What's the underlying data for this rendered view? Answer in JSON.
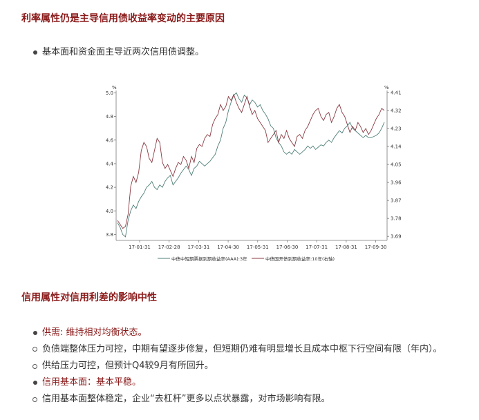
{
  "section1": {
    "heading": "利率属性仍是主导信用债收益率变动的主要原因",
    "bullet": "基本面和资金面主导近两次信用债调整。"
  },
  "section2": {
    "heading": "信用属性对信用利差的影响中性",
    "items": [
      {
        "style": "dot",
        "text": "供需: 维持相对均衡状态。",
        "color": "#8b1a1a"
      },
      {
        "style": "ring",
        "text": "负债端整体压力可控，中期有望逐步修复，但短期仍难有明显增长且成本中枢下行空间有限（年内）。"
      },
      {
        "style": "ring",
        "text": "供给压力可控，但预计Q4较9月有所回升。"
      },
      {
        "style": "dot",
        "text": "信用基本面：基本平稳。",
        "color": "#8b1a1a"
      },
      {
        "style": "ring",
        "text": "信用基本面整体稳定，企业“去杠杆”更多以点状暴露，对市场影响有限。"
      }
    ]
  },
  "chart_data": {
    "type": "line",
    "x_ticks": [
      "17-01-31",
      "17-02-28",
      "17-03-31",
      "17-04-30",
      "17-05-31",
      "17-06-30",
      "17-07-31",
      "17-08-31",
      "17-09-30"
    ],
    "y_left_ticks": [
      "5.0",
      "4.8",
      "4.6",
      "4.4",
      "4.2",
      "4.0",
      "3.8"
    ],
    "y_right_ticks": [
      "4.41",
      "4.32",
      "4.23",
      "4.14",
      "4.05",
      "3.96",
      "3.87",
      "3.78",
      "3.69"
    ],
    "ylim_left": [
      3.75,
      5.02
    ],
    "ylim_right": [
      3.67,
      4.42
    ],
    "left_axis_symbol": "%",
    "right_axis_symbol": "%",
    "series": [
      {
        "name": "中债中短期票据到期收益率(AAA):3年",
        "axis": "left",
        "color": "#4f7f78",
        "values": [
          3.9,
          3.86,
          3.8,
          3.78,
          3.92,
          4.0,
          4.05,
          4.02,
          4.08,
          4.12,
          4.15,
          4.2,
          4.22,
          4.25,
          4.2,
          4.18,
          4.22,
          4.2,
          4.25,
          4.28,
          4.3,
          4.22,
          4.25,
          4.28,
          4.32,
          4.35,
          4.38,
          4.35,
          4.3,
          4.36,
          4.38,
          4.42,
          4.4,
          4.38,
          4.4,
          4.42,
          4.45,
          4.48,
          4.55,
          4.6,
          4.7,
          4.75,
          4.85,
          4.92,
          4.98,
          5.0,
          4.95,
          4.92,
          4.98,
          4.96,
          4.9,
          4.94,
          4.92,
          4.88,
          4.9,
          4.85,
          4.82,
          4.78,
          4.72,
          4.7,
          4.62,
          4.58,
          4.55,
          4.5,
          4.48,
          4.5,
          4.48,
          4.52,
          4.5,
          4.48,
          4.5,
          4.52,
          4.55,
          4.53,
          4.55,
          4.52,
          4.54,
          4.56,
          4.55,
          4.58,
          4.6,
          4.58,
          4.62,
          4.65,
          4.68,
          4.66,
          4.7,
          4.72,
          4.75,
          4.7,
          4.68,
          4.66,
          4.64,
          4.62,
          4.64,
          4.62,
          4.62,
          4.63,
          4.64,
          4.66,
          4.7,
          4.75
        ]
      },
      {
        "name": "中债国开债到期收益率:10年(右轴)",
        "axis": "right",
        "color": "#8a3a42",
        "values": [
          3.77,
          3.75,
          3.73,
          3.74,
          3.8,
          3.94,
          3.99,
          3.96,
          4.01,
          4.12,
          4.16,
          4.14,
          4.08,
          4.06,
          4.12,
          4.18,
          4.16,
          4.06,
          4.03,
          4.05,
          4.02,
          3.99,
          4.03,
          4.06,
          4.05,
          4.09,
          4.07,
          4.03,
          4.09,
          4.06,
          4.13,
          4.15,
          4.14,
          4.18,
          4.2,
          4.19,
          4.25,
          4.28,
          4.3,
          4.35,
          4.32,
          4.34,
          4.39,
          4.37,
          4.4,
          4.36,
          4.33,
          4.31,
          4.35,
          4.39,
          4.34,
          4.3,
          4.32,
          4.28,
          4.26,
          4.24,
          4.22,
          4.16,
          4.18,
          4.2,
          4.22,
          4.16,
          4.2,
          4.18,
          4.22,
          4.18,
          4.16,
          4.14,
          4.19,
          4.2,
          4.18,
          4.22,
          4.24,
          4.27,
          4.3,
          4.32,
          4.33,
          4.29,
          4.27,
          4.3,
          4.31,
          4.26,
          4.29,
          4.33,
          4.35,
          4.31,
          4.29,
          4.25,
          4.21,
          4.24,
          4.22,
          4.26,
          4.24,
          4.21,
          4.23,
          4.2,
          4.22,
          4.25,
          4.28,
          4.3,
          4.33,
          4.32
        ]
      }
    ],
    "grid": false,
    "legend_position": "bottom"
  }
}
